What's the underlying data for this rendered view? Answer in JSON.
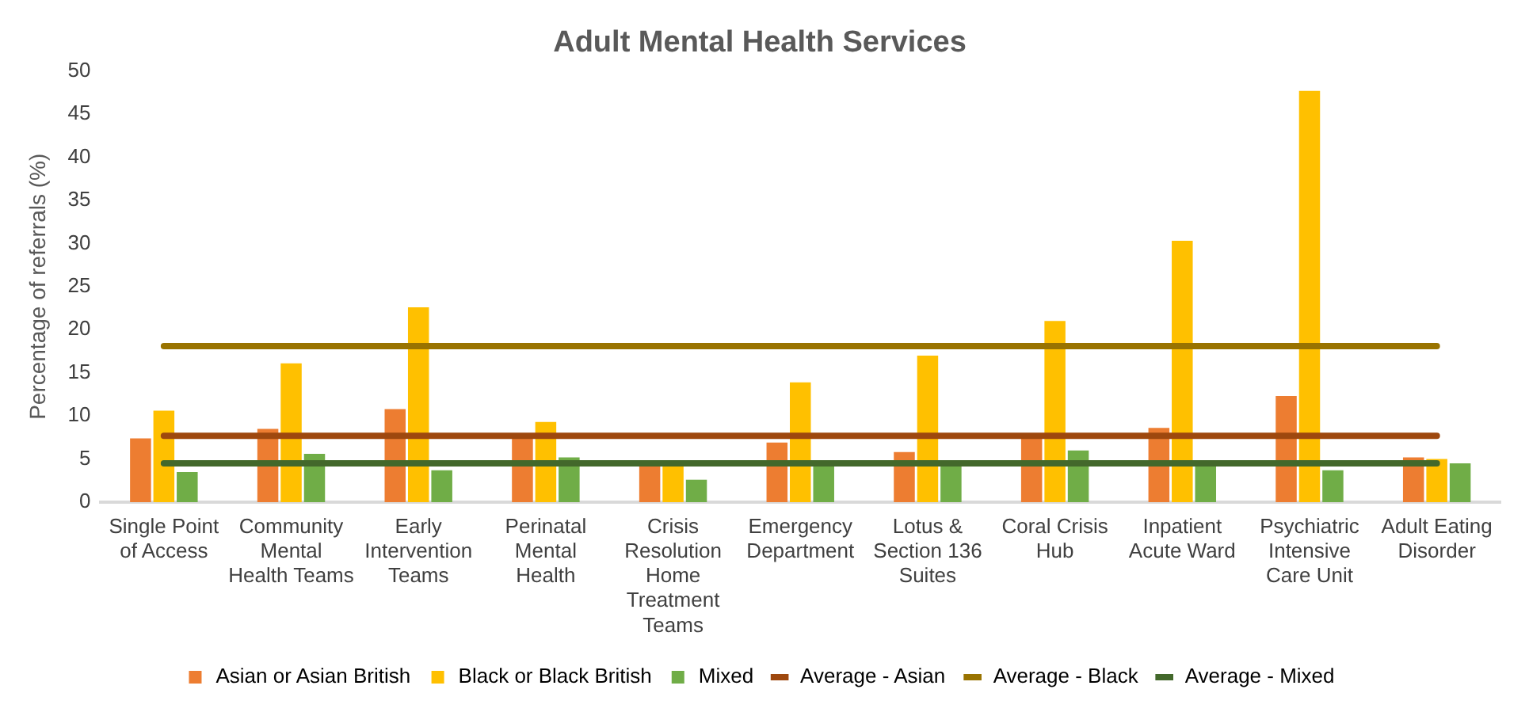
{
  "chart_data": {
    "type": "bar",
    "title": "Adult Mental Health Services",
    "ylabel": "Percentage of referrals (%)",
    "categories": [
      "Single Point of Access",
      "Community Mental Health Teams",
      "Early Intervention Teams",
      "Perinatal Mental Health",
      "Crisis Resolution Home Treatment Teams",
      "Emergency Department",
      "Lotus & Section 136 Suites",
      "Coral Crisis Hub",
      "Inpatient Acute Ward",
      "Psychiatric Intensive Care Unit",
      "Adult Eating Disorder"
    ],
    "series": [
      {
        "name": "Asian or Asian British",
        "color": "#ed7d31",
        "values": [
          7.4,
          8.5,
          10.8,
          8.0,
          4.3,
          6.9,
          5.8,
          7.7,
          8.6,
          12.3,
          5.2
        ]
      },
      {
        "name": "Black or Black British",
        "color": "#ffc000",
        "values": [
          10.6,
          16.1,
          22.6,
          9.3,
          4.5,
          13.9,
          17.0,
          21.0,
          30.3,
          47.7,
          5.0
        ]
      },
      {
        "name": "Mixed",
        "color": "#70ad47",
        "values": [
          3.5,
          5.6,
          3.7,
          5.2,
          2.6,
          4.3,
          4.3,
          6.0,
          4.4,
          3.7,
          4.5
        ]
      },
      {
        "name": "Average - Asian",
        "type": "line",
        "color": "#9e480e",
        "values": [
          7.7,
          7.7,
          7.7,
          7.7,
          7.7,
          7.7,
          7.7,
          7.7,
          7.7,
          7.7,
          7.7
        ]
      },
      {
        "name": "Average - Black",
        "type": "line",
        "color": "#997300",
        "values": [
          18.1,
          18.1,
          18.1,
          18.1,
          18.1,
          18.1,
          18.1,
          18.1,
          18.1,
          18.1,
          18.1
        ]
      },
      {
        "name": "Average - Mixed",
        "type": "line",
        "color": "#43682b",
        "values": [
          4.5,
          4.5,
          4.5,
          4.5,
          4.5,
          4.5,
          4.5,
          4.5,
          4.5,
          4.5,
          4.5
        ]
      }
    ],
    "ylim": [
      0,
      50
    ],
    "yticks": [
      0,
      5,
      10,
      15,
      20,
      25,
      30,
      35,
      40,
      45,
      50
    ],
    "grid": false,
    "legend": "bottom",
    "marker": "none",
    "line_style": "solid"
  }
}
